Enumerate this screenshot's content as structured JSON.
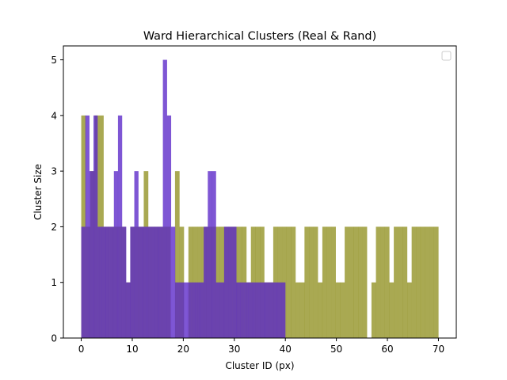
{
  "chart_data": {
    "type": "bar",
    "title": "Ward Hierarchical Clusters (Real & Rand)",
    "xlabel": "Cluster ID (px)",
    "ylabel": "Cluster Size",
    "xlim": [
      -3.5,
      73.5
    ],
    "ylim": [
      0,
      5.25
    ],
    "xticks": [
      0,
      10,
      20,
      30,
      40,
      50,
      60,
      70
    ],
    "yticks": [
      0,
      1,
      2,
      3,
      4,
      5
    ],
    "grid": false,
    "legend": {
      "placement": "top-right",
      "entries": []
    },
    "series": [
      {
        "color": "#808000",
        "opacity": 0.68,
        "bin_edges": [
          0,
          0.875,
          1.75,
          2.625,
          3.5,
          4.375,
          5.25,
          6.125,
          7,
          7.875,
          8.75,
          9.625,
          10.5,
          11.375,
          12.25,
          13.125,
          14,
          14.875,
          15.75,
          16.625,
          17.5,
          18.375,
          19.25,
          20.125,
          21,
          21.875,
          22.75,
          23.625,
          24.5,
          25.375,
          26.25,
          27.125,
          28,
          28.875,
          29.75,
          30.625,
          31.5,
          32.375,
          33.25,
          34.125,
          35,
          35.875,
          36.75,
          37.625,
          38.5,
          39.375,
          40.25,
          41.125,
          42,
          42.875,
          43.75,
          44.625,
          45.5,
          46.375,
          47.25,
          48.125,
          49,
          49.875,
          50.75,
          51.625,
          52.5,
          53.375,
          54.25,
          55.125,
          56,
          56.875,
          57.75,
          58.625,
          59.5,
          60.375,
          61.25,
          62.125,
          63,
          63.875,
          64.75,
          65.625,
          66.5,
          67.375,
          68.25,
          69.125,
          70
        ],
        "values": [
          4,
          2,
          3,
          4,
          4,
          2,
          2,
          2,
          2,
          2,
          1,
          2,
          2,
          2,
          3,
          2,
          2,
          2,
          2,
          2,
          0,
          3,
          2,
          0,
          2,
          2,
          2,
          2,
          2,
          2,
          2,
          2,
          2,
          2,
          2,
          2,
          2,
          1,
          2,
          2,
          2,
          1,
          1,
          2,
          2,
          2,
          2,
          2,
          1,
          1,
          2,
          2,
          2,
          1,
          2,
          2,
          2,
          1,
          1,
          2,
          2,
          2,
          2,
          2,
          0,
          1,
          2,
          2,
          2,
          1,
          2,
          2,
          2,
          1,
          2,
          2,
          2,
          2,
          2,
          2
        ]
      },
      {
        "color": "#5a26c8",
        "opacity": 0.78,
        "bin_edges": [
          0,
          0.8,
          1.6,
          2.4,
          3.2,
          4,
          4.8,
          5.6,
          6.4,
          7.2,
          8,
          8.8,
          9.6,
          10.4,
          11.2,
          12,
          12.8,
          13.6,
          14.4,
          15.2,
          16,
          16.8,
          17.6,
          18.4,
          19.2,
          20,
          20.8,
          21.6,
          22.4,
          23.2,
          24,
          24.8,
          25.6,
          26.4,
          27.2,
          28,
          28.8,
          29.6,
          30.4,
          31.2,
          32,
          32.8,
          33.6,
          34.4,
          35.2,
          36,
          36.8,
          37.6,
          38.4,
          39.2,
          40
        ],
        "values": [
          2,
          4,
          3,
          4,
          2,
          2,
          2,
          2,
          3,
          4,
          2,
          1,
          2,
          3,
          2,
          2,
          2,
          2,
          2,
          2,
          5,
          4,
          2,
          1,
          1,
          1,
          1,
          1,
          1,
          1,
          2,
          3,
          3,
          1,
          1,
          2,
          2,
          2,
          1,
          1,
          1,
          1,
          1,
          1,
          1,
          1,
          1,
          1,
          1,
          1
        ]
      }
    ]
  }
}
